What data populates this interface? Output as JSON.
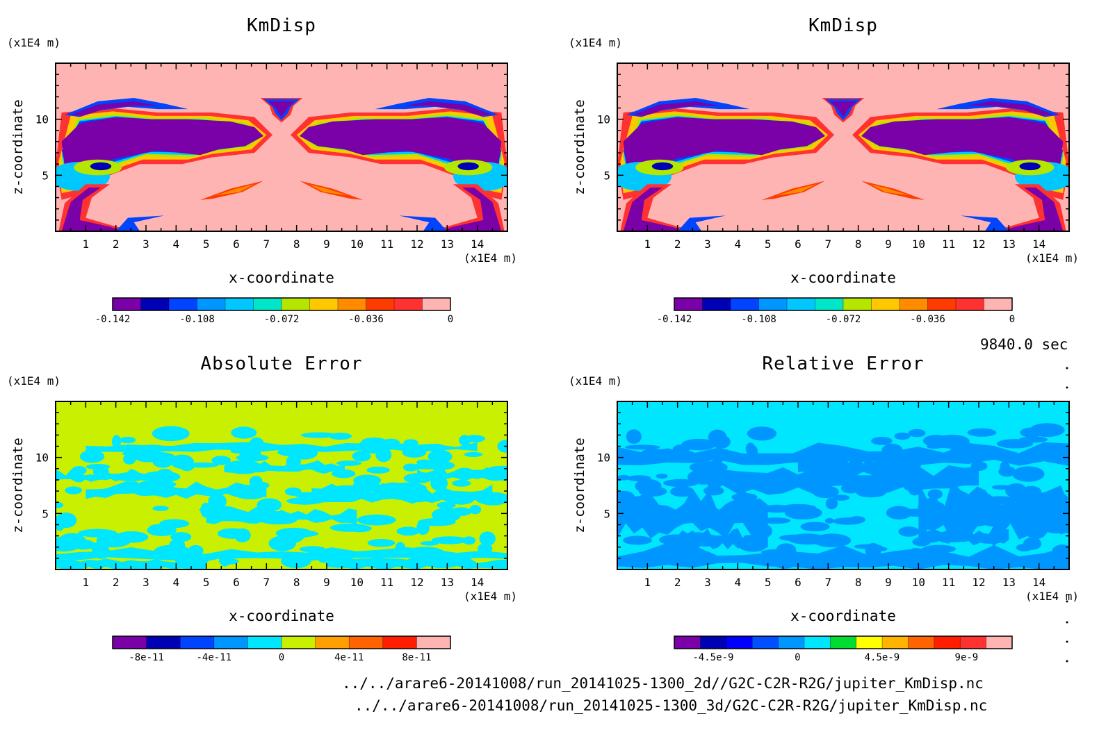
{
  "time_label": "9840.0 sec",
  "footer": {
    "line1": "../../arare6-20141008/run_20141025-1300_2d//G2C-C2R-R2G/jupiter_KmDisp.nc",
    "line2": "../../arare6-20141008/run_20141025-1300_3d/G2C-C2R-R2G/jupiter_KmDisp.nc"
  },
  "chart_data": [
    {
      "type": "heatmap",
      "title": "KmDisp",
      "xlabel": "x-coordinate",
      "ylabel": "z-coordinate",
      "xunit": "(x1E4 m)",
      "yunit": "(x1E4 m)",
      "xlim": [
        0,
        15
      ],
      "ylim": [
        0,
        15
      ],
      "xticks": [
        "1",
        "2",
        "3",
        "4",
        "5",
        "6",
        "7",
        "8",
        "9",
        "10",
        "11",
        "12",
        "13",
        "14"
      ],
      "yticks": [
        "5",
        "10"
      ],
      "field": "kmdisp",
      "colorbar": {
        "colors": [
          "#7a00a8",
          "#0000b4",
          "#0044ff",
          "#0096ff",
          "#00c8ff",
          "#00e6c8",
          "#b4e600",
          "#ffc800",
          "#ff8c00",
          "#ff3c00",
          "#ff3232",
          "#ffb4b4"
        ],
        "labels": [
          "-0.142",
          "-0.108",
          "-0.072",
          "-0.036",
          "0"
        ],
        "label_positions": [
          0,
          0.25,
          0.5,
          0.75,
          1.0
        ]
      }
    },
    {
      "type": "heatmap",
      "title": "KmDisp",
      "xlabel": "x-coordinate",
      "ylabel": "z-coordinate",
      "xunit": "(x1E4 m)",
      "yunit": "(x1E4 m)",
      "xlim": [
        0,
        15
      ],
      "ylim": [
        0,
        15
      ],
      "xticks": [
        "1",
        "2",
        "3",
        "4",
        "5",
        "6",
        "7",
        "8",
        "9",
        "10",
        "11",
        "12",
        "13",
        "14"
      ],
      "yticks": [
        "5",
        "10"
      ],
      "field": "kmdisp",
      "colorbar": {
        "colors": [
          "#7a00a8",
          "#0000b4",
          "#0044ff",
          "#0096ff",
          "#00c8ff",
          "#00e6c8",
          "#b4e600",
          "#ffc800",
          "#ff8c00",
          "#ff3c00",
          "#ff3232",
          "#ffb4b4"
        ],
        "labels": [
          "-0.142",
          "-0.108",
          "-0.072",
          "-0.036",
          "0"
        ],
        "label_positions": [
          0,
          0.25,
          0.5,
          0.75,
          1.0
        ]
      }
    },
    {
      "type": "heatmap",
      "title": "Absolute Error",
      "xlabel": "x-coordinate",
      "ylabel": "z-coordinate",
      "xunit": "(x1E4 m)",
      "yunit": "(x1E4 m)",
      "xlim": [
        0,
        15
      ],
      "ylim": [
        0,
        15
      ],
      "xticks": [
        "1",
        "2",
        "3",
        "4",
        "5",
        "6",
        "7",
        "8",
        "9",
        "10",
        "11",
        "12",
        "13",
        "14"
      ],
      "yticks": [
        "5",
        "10"
      ],
      "field": "abserr",
      "colorbar": {
        "colors": [
          "#7a00a8",
          "#0000b4",
          "#0044ff",
          "#0096ff",
          "#00e6ff",
          "#c8f000",
          "#ffa000",
          "#ff6400",
          "#ff1e00",
          "#ffb4b4"
        ],
        "labels": [
          "-8e-11",
          "-4e-11",
          "0",
          "4e-11",
          "8e-11"
        ],
        "label_positions": [
          0.1,
          0.3,
          0.5,
          0.7,
          0.9
        ]
      }
    },
    {
      "type": "heatmap",
      "title": "Relative Error",
      "xlabel": "x-coordinate",
      "ylabel": "z-coordinate",
      "xunit": "(x1E4 m)",
      "yunit": "(x1E4 m)",
      "xlim": [
        0,
        15
      ],
      "ylim": [
        0,
        15
      ],
      "xticks": [
        "1",
        "2",
        "3",
        "4",
        "5",
        "6",
        "7",
        "8",
        "9",
        "10",
        "11",
        "12",
        "13",
        "14"
      ],
      "yticks": [
        "5",
        "10"
      ],
      "field": "relerr",
      "colorbar": {
        "colors": [
          "#7a00a8",
          "#0000b4",
          "#0000ff",
          "#0050ff",
          "#0096ff",
          "#00e6ff",
          "#00dc32",
          "#ffff00",
          "#ffb400",
          "#ff6400",
          "#ff1e00",
          "#ff3232",
          "#ffb4b4"
        ],
        "labels": [
          "-4.5e-9",
          "0",
          "4.5e-9",
          "9e-9"
        ],
        "label_positions": [
          0.115,
          0.365,
          0.615,
          0.865
        ]
      }
    }
  ]
}
